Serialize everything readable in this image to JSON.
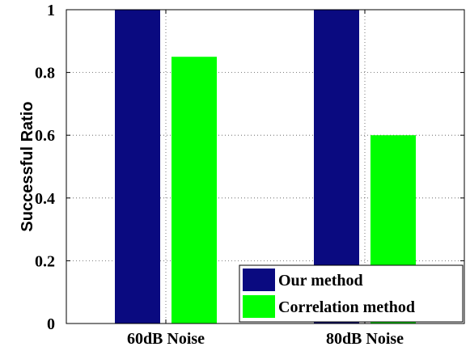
{
  "chart_data": {
    "type": "bar",
    "title": "",
    "xlabel": "",
    "ylabel": "Successful Ratio",
    "categories": [
      "60dB Noise",
      "80dB Noise"
    ],
    "series": [
      {
        "name": "Our method",
        "color": "#0a0a80",
        "values": [
          1.0,
          1.0
        ]
      },
      {
        "name": "Correlation method",
        "color": "#00ff00",
        "values": [
          0.85,
          0.6
        ]
      }
    ],
    "ylim": [
      0,
      1
    ],
    "yticks": [
      "0",
      "0.2",
      "0.4",
      "0.6",
      "0.8",
      "1"
    ],
    "grid": true,
    "legend_position": "bottom-right"
  }
}
